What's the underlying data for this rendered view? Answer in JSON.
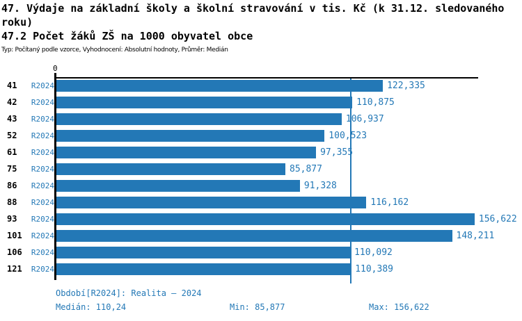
{
  "header": {
    "title": "47. Výdaje na základní školy a školní stravování v tis. Kč (k 31.12. sledovaného roku)",
    "subtitle": "47.2 Počet žáků ZŠ na 1000 obyvatel obce",
    "meta": "Typ: Počítaný podle vzorce, Vyhodnocení: Absolutní hodnoty, Průměr: Medián"
  },
  "chart_data": {
    "type": "bar",
    "orientation": "horizontal",
    "title": "47.2 Počet žáků ZŠ na 1000 obyvatel obce",
    "categories": [
      "41",
      "42",
      "43",
      "52",
      "61",
      "75",
      "86",
      "88",
      "93",
      "101",
      "106",
      "121"
    ],
    "period_label": "R2024",
    "values": [
      122.335,
      110.875,
      106.937,
      100.523,
      97.355,
      85.877,
      91.328,
      116.162,
      156.622,
      148.211,
      110.092,
      110.389
    ],
    "value_labels": [
      "122,335",
      "110,875",
      "106,937",
      "100,523",
      "97,355",
      "85,877",
      "91,328",
      "116,162",
      "156,622",
      "148,211",
      "110,092",
      "110,389"
    ],
    "x_axis": {
      "zero_label": "0",
      "min": 0,
      "max": 157.7,
      "gridlines": false
    },
    "median": {
      "value": 110.24,
      "label": "110,24"
    },
    "legend_position": "bottom",
    "colors": {
      "bar": "#2378b6",
      "axis": "#000000",
      "label_blue": "#2378b6"
    }
  },
  "footer": {
    "legend": "Období[R2024]: Realita – 2024",
    "median": "Medián: 110,24",
    "min": "Min: 85,877",
    "max": "Max: 156,622"
  }
}
